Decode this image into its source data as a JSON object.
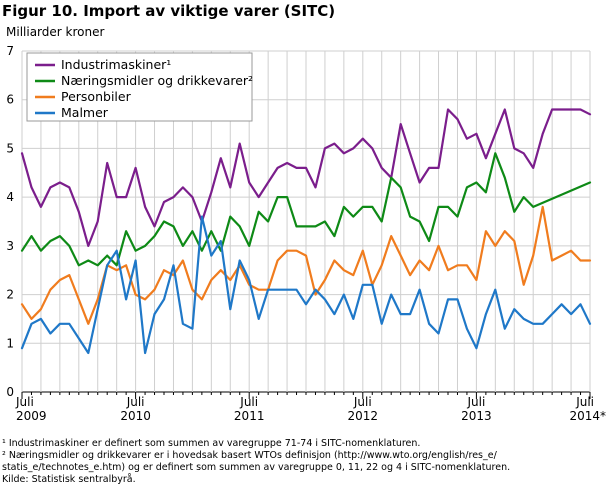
{
  "title": "Figur 10. Import av viktige varer (SITC)",
  "unit": "Milliarder kroner",
  "footnotes": [
    "¹ Industrimaskiner er definert som summen av varegruppe 71-74 i SITC-nomenklaturen.",
    "² Næringsmidler og drikkevarer er i hovedsak basert WTOs definisjon (http://www.wto.org/english/res_e/",
    "statis_e/technotes_e.htm) og er definert som summen av varegruppe 0, 11, 22 og 4 i SITC-nomenklaturen.",
    "Kilde: Statistisk sentralbyrå."
  ],
  "chart_data": {
    "type": "line",
    "title": "Import av viktige varer (SITC)",
    "ylabel": "Milliarder kroner",
    "ylim": [
      0,
      7
    ],
    "yticks": [
      0,
      1,
      2,
      3,
      4,
      5,
      6,
      7
    ],
    "xlim": [
      0,
      60
    ],
    "x_tick_labels": [
      {
        "x": 0,
        "month": "Juli",
        "year": "2009"
      },
      {
        "x": 12,
        "month": "Juli",
        "year": "2010"
      },
      {
        "x": 24,
        "month": "Juli",
        "year": "2011"
      },
      {
        "x": 36,
        "month": "Juli",
        "year": "2012"
      },
      {
        "x": 48,
        "month": "Juli",
        "year": "2013"
      },
      {
        "x": 60,
        "month": "Juli",
        "year": "2014*"
      }
    ],
    "legend_position": "top-left",
    "series": [
      {
        "name": "Industrimaskiner¹",
        "color": "#7b1e8c",
        "values": [
          4.9,
          4.2,
          3.8,
          4.2,
          4.3,
          4.2,
          3.7,
          3.0,
          3.5,
          4.7,
          4.0,
          4.0,
          4.6,
          3.8,
          3.4,
          3.9,
          4.0,
          4.2,
          4.0,
          3.5,
          4.1,
          4.8,
          4.2,
          5.1,
          4.3,
          4.0,
          4.3,
          4.6,
          4.7,
          4.6,
          4.6,
          4.2,
          5.0,
          5.1,
          4.9,
          5.0,
          5.2,
          5.0,
          4.6,
          4.4,
          5.5,
          4.9,
          4.3,
          4.6,
          4.6,
          5.8,
          5.6,
          5.2,
          5.3,
          4.8,
          5.3,
          5.8,
          5.0,
          4.9,
          4.6,
          5.3,
          5.8,
          5.8,
          5.8,
          5.8,
          5.7
        ]
      },
      {
        "name": "Næringsmidler og drikkevarer²",
        "color": "#0e8a16",
        "values": [
          2.9,
          3.2,
          2.9,
          3.1,
          3.2,
          3.0,
          2.6,
          2.7,
          2.6,
          2.8,
          2.6,
          3.3,
          2.9,
          3.0,
          3.2,
          3.5,
          3.4,
          3.0,
          3.3,
          2.9,
          3.3,
          2.9,
          3.6,
          3.4,
          3.0,
          3.7,
          3.5,
          4.0,
          4.0,
          3.4,
          3.4,
          3.4,
          3.5,
          3.2,
          3.8,
          3.6,
          3.8,
          3.8,
          3.5,
          4.4,
          4.2,
          3.6,
          3.5,
          3.1,
          3.8,
          3.8,
          3.6,
          4.2,
          4.3,
          4.1,
          4.9,
          4.4,
          3.7,
          4.0,
          3.8,
          null,
          null,
          null,
          null,
          null,
          4.3
        ]
      },
      {
        "name": "Personbiler",
        "color": "#f07c1e",
        "values": [
          1.8,
          1.5,
          1.7,
          2.1,
          2.3,
          2.4,
          1.9,
          1.4,
          1.9,
          2.6,
          2.5,
          2.6,
          2.0,
          1.9,
          2.1,
          2.5,
          2.4,
          2.7,
          2.1,
          1.9,
          2.3,
          2.5,
          2.3,
          2.6,
          2.2,
          2.1,
          2.1,
          2.7,
          2.9,
          2.9,
          2.8,
          2.0,
          2.3,
          2.7,
          2.5,
          2.4,
          2.9,
          2.2,
          2.6,
          3.2,
          2.8,
          2.4,
          2.7,
          2.5,
          3.0,
          2.5,
          2.6,
          2.6,
          2.3,
          3.3,
          3.0,
          3.3,
          3.1,
          2.2,
          2.8,
          3.8,
          2.7,
          2.8,
          2.9,
          2.7,
          2.7
        ]
      },
      {
        "name": "Malmer",
        "color": "#1f78c8",
        "values": [
          0.9,
          1.4,
          1.5,
          1.2,
          1.4,
          1.4,
          1.1,
          0.8,
          1.7,
          2.6,
          2.9,
          1.9,
          2.7,
          0.8,
          1.6,
          1.9,
          2.6,
          1.4,
          1.3,
          3.6,
          2.8,
          3.1,
          1.7,
          2.7,
          2.3,
          1.5,
          2.1,
          2.1,
          2.1,
          2.1,
          1.8,
          2.1,
          1.9,
          1.6,
          2.0,
          1.5,
          2.2,
          2.2,
          1.4,
          2.0,
          1.6,
          1.6,
          2.1,
          1.4,
          1.2,
          1.9,
          1.9,
          1.3,
          0.9,
          1.6,
          2.1,
          1.3,
          1.7,
          1.5,
          1.4,
          1.4,
          1.6,
          1.8,
          1.6,
          1.8,
          1.4
        ]
      }
    ]
  }
}
